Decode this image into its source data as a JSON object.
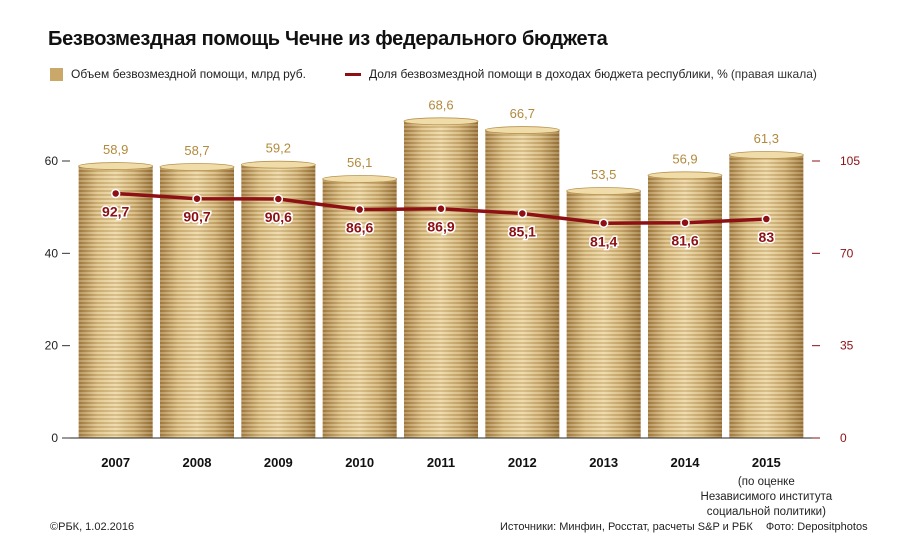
{
  "title": "Безвозмездная помощь Чечне из федерального бюджета",
  "legend": {
    "bars_label": "Объем безвозмездной помощи, млрд руб.",
    "line_label": "Доля безвозмездной помощи в доходах бюджета республики, %",
    "line_note": "(правая шкала)"
  },
  "colors": {
    "bar_value": "#b38a3d",
    "line": "#8c1014",
    "coin_light": "#e6cc8f",
    "coin_dark": "#a78347",
    "axis_right": "#8c1014"
  },
  "chart_data": {
    "type": "bar",
    "categories": [
      "2007",
      "2008",
      "2009",
      "2010",
      "2011",
      "2012",
      "2013",
      "2014",
      "2015"
    ],
    "category_note": "(по оценке Независимого института социальной политики)",
    "category_note_lines": [
      "(по оценке",
      "Независимого института",
      "социальной политики)"
    ],
    "series": [
      {
        "name": "Объем безвозмездной помощи, млрд руб.",
        "axis": "left",
        "values": [
          58.9,
          58.7,
          59.2,
          56.1,
          68.6,
          66.7,
          53.5,
          56.9,
          61.3
        ],
        "labels": [
          "58,9",
          "58,7",
          "59,2",
          "56,1",
          "68,6",
          "66,7",
          "53,5",
          "56,9",
          "61,3"
        ]
      },
      {
        "name": "Доля безвозмездной помощи в доходах бюджета республики, %",
        "axis": "right",
        "type": "line",
        "values": [
          92.7,
          90.7,
          90.6,
          86.6,
          86.9,
          85.1,
          81.4,
          81.6,
          83
        ],
        "labels": [
          "92,7",
          "90,7",
          "90,6",
          "86,6",
          "86,9",
          "85,1",
          "81,4",
          "81,6",
          "83"
        ]
      }
    ],
    "left_axis": {
      "ylim": [
        0,
        60
      ],
      "ticks": [
        "0",
        "20",
        "40",
        "60"
      ],
      "tick_values": [
        0,
        20,
        40,
        60
      ]
    },
    "right_axis": {
      "ylim": [
        0,
        105
      ],
      "ticks": [
        "0",
        "35",
        "70",
        "105"
      ],
      "tick_values": [
        0,
        35,
        70,
        105
      ]
    }
  },
  "footer": {
    "copyright": "©РБК, 1.02.2016",
    "sources": "Источники: Минфин, Росстат, расчеты S&P и РБК",
    "photo": "Фото: Depositphotos"
  }
}
